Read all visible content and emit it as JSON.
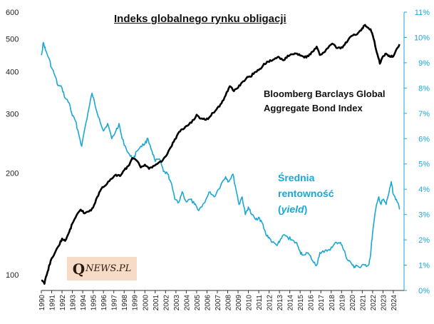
{
  "chart_data": {
    "type": "line",
    "title": "Indeks globalnego  rynku obligacji",
    "x": [
      1990,
      1991,
      1992,
      1993,
      1994,
      1995,
      1996,
      1997,
      1998,
      1999,
      2000,
      2001,
      2002,
      2003,
      2004,
      2005,
      2006,
      2007,
      2008,
      2009,
      2010,
      2011,
      2012,
      2013,
      2014,
      2015,
      2016,
      2017,
      2018,
      2019,
      2020,
      2021,
      2022,
      2023,
      2024
    ],
    "x_tick_labels": [
      "1990",
      "1991",
      "1992",
      "1993",
      "1994",
      "1995",
      "1996",
      "1997",
      "1998",
      "1999",
      "2000",
      "2001",
      "2002",
      "2003",
      "2004",
      "2005",
      "2006",
      "2007",
      "2008",
      "2009",
      "2010",
      "2011",
      "2012",
      "2013",
      "2014",
      "2015",
      "2016",
      "2017",
      "2018",
      "2019",
      "2020",
      "2021",
      "2022",
      "2023",
      "2024"
    ],
    "left_axis": {
      "scale": "log",
      "ylim": [
        90,
        600
      ],
      "ticks": [
        100,
        200,
        300,
        400,
        500,
        600
      ],
      "tick_labels": [
        "100",
        "200",
        "300",
        "400",
        "500",
        "600"
      ]
    },
    "right_axis": {
      "ylim": [
        0,
        11
      ],
      "ticks": [
        0,
        1,
        2,
        3,
        4,
        5,
        6,
        7,
        8,
        9,
        10,
        11
      ],
      "tick_labels": [
        "0%",
        "1%",
        "2%",
        "3%",
        "4%",
        "5%",
        "6%",
        "7%",
        "8%",
        "9%",
        "10%",
        "11%"
      ]
    },
    "series": [
      {
        "name": "Bloomberg Barclays Global Aggregate Bond Index",
        "axis": "left",
        "color": "#000000",
        "points": [
          [
            1990.0,
            96
          ],
          [
            1990.3,
            94
          ],
          [
            1990.6,
            102
          ],
          [
            1990.9,
            110
          ],
          [
            1991.3,
            116
          ],
          [
            1991.7,
            122
          ],
          [
            1992.0,
            128
          ],
          [
            1992.3,
            126
          ],
          [
            1992.7,
            134
          ],
          [
            1993.0,
            142
          ],
          [
            1993.4,
            150
          ],
          [
            1993.8,
            156
          ],
          [
            1994.2,
            152
          ],
          [
            1994.6,
            154
          ],
          [
            1995.0,
            158
          ],
          [
            1995.4,
            170
          ],
          [
            1995.8,
            180
          ],
          [
            1996.2,
            184
          ],
          [
            1996.7,
            192
          ],
          [
            1997.2,
            198
          ],
          [
            1997.6,
            196
          ],
          [
            1998.0,
            204
          ],
          [
            1998.4,
            210
          ],
          [
            1998.8,
            222
          ],
          [
            1999.2,
            218
          ],
          [
            1999.6,
            208
          ],
          [
            2000.0,
            212
          ],
          [
            2000.4,
            206
          ],
          [
            2000.8,
            210
          ],
          [
            2001.2,
            213
          ],
          [
            2001.6,
            216
          ],
          [
            2002.0,
            224
          ],
          [
            2002.4,
            236
          ],
          [
            2002.8,
            248
          ],
          [
            2003.2,
            262
          ],
          [
            2003.6,
            270
          ],
          [
            2004.0,
            276
          ],
          [
            2004.5,
            282
          ],
          [
            2005.0,
            298
          ],
          [
            2005.4,
            290
          ],
          [
            2005.8,
            288
          ],
          [
            2006.2,
            292
          ],
          [
            2006.6,
            302
          ],
          [
            2007.0,
            312
          ],
          [
            2007.4,
            322
          ],
          [
            2007.8,
            340
          ],
          [
            2008.2,
            362
          ],
          [
            2008.6,
            350
          ],
          [
            2009.0,
            358
          ],
          [
            2009.4,
            372
          ],
          [
            2009.8,
            382
          ],
          [
            2010.2,
            386
          ],
          [
            2010.6,
            398
          ],
          [
            2011.0,
            404
          ],
          [
            2011.4,
            416
          ],
          [
            2011.8,
            428
          ],
          [
            2012.2,
            430
          ],
          [
            2012.6,
            438
          ],
          [
            2013.0,
            440
          ],
          [
            2013.4,
            432
          ],
          [
            2013.8,
            446
          ],
          [
            2014.2,
            450
          ],
          [
            2014.6,
            452
          ],
          [
            2015.0,
            446
          ],
          [
            2015.4,
            440
          ],
          [
            2015.8,
            444
          ],
          [
            2016.2,
            458
          ],
          [
            2016.6,
            474
          ],
          [
            2016.9,
            448
          ],
          [
            2017.3,
            456
          ],
          [
            2017.7,
            470
          ],
          [
            2018.1,
            484
          ],
          [
            2018.5,
            470
          ],
          [
            2018.9,
            468
          ],
          [
            2019.3,
            480
          ],
          [
            2019.7,
            500
          ],
          [
            2020.1,
            512
          ],
          [
            2020.5,
            516
          ],
          [
            2020.9,
            530
          ],
          [
            2021.2,
            548
          ],
          [
            2021.5,
            540
          ],
          [
            2021.8,
            534
          ],
          [
            2022.1,
            500
          ],
          [
            2022.4,
            456
          ],
          [
            2022.7,
            422
          ],
          [
            2023.0,
            444
          ],
          [
            2023.3,
            452
          ],
          [
            2023.6,
            446
          ],
          [
            2023.9,
            442
          ],
          [
            2024.2,
            458
          ],
          [
            2024.6,
            482
          ]
        ]
      },
      {
        "name": "Średnia rentowność (yield)",
        "axis": "right",
        "color": "#1aa7d6",
        "points": [
          [
            1990.0,
            9.3
          ],
          [
            1990.2,
            9.8
          ],
          [
            1990.4,
            9.5
          ],
          [
            1990.7,
            9.2
          ],
          [
            1991.0,
            8.8
          ],
          [
            1991.3,
            8.5
          ],
          [
            1991.6,
            8.1
          ],
          [
            1992.0,
            8.0
          ],
          [
            1992.3,
            7.6
          ],
          [
            1992.7,
            7.4
          ],
          [
            1993.0,
            6.9
          ],
          [
            1993.3,
            6.7
          ],
          [
            1993.6,
            6.2
          ],
          [
            1993.9,
            5.7
          ],
          [
            1994.2,
            6.4
          ],
          [
            1994.6,
            7.2
          ],
          [
            1994.9,
            7.8
          ],
          [
            1995.2,
            7.3
          ],
          [
            1995.6,
            6.8
          ],
          [
            1996.0,
            6.3
          ],
          [
            1996.4,
            6.6
          ],
          [
            1996.8,
            6.0
          ],
          [
            1997.2,
            6.3
          ],
          [
            1997.5,
            6.6
          ],
          [
            1997.8,
            6.0
          ],
          [
            1998.2,
            5.6
          ],
          [
            1998.6,
            5.3
          ],
          [
            1998.9,
            5.2
          ],
          [
            1999.2,
            5.5
          ],
          [
            1999.6,
            5.7
          ],
          [
            2000.0,
            5.8
          ],
          [
            2000.3,
            6.0
          ],
          [
            2000.7,
            5.5
          ],
          [
            2001.0,
            5.1
          ],
          [
            2001.4,
            5.2
          ],
          [
            2001.8,
            4.7
          ],
          [
            2002.2,
            4.6
          ],
          [
            2002.5,
            4.3
          ],
          [
            2002.9,
            3.6
          ],
          [
            2003.3,
            3.5
          ],
          [
            2003.6,
            3.9
          ],
          [
            2004.0,
            3.5
          ],
          [
            2004.4,
            3.6
          ],
          [
            2004.8,
            3.4
          ],
          [
            2005.1,
            3.2
          ],
          [
            2005.5,
            3.3
          ],
          [
            2005.9,
            3.6
          ],
          [
            2006.3,
            3.9
          ],
          [
            2006.7,
            3.7
          ],
          [
            2007.1,
            4.0
          ],
          [
            2007.5,
            4.3
          ],
          [
            2007.8,
            4.5
          ],
          [
            2008.1,
            4.3
          ],
          [
            2008.5,
            4.6
          ],
          [
            2008.8,
            4.0
          ],
          [
            2009.1,
            3.4
          ],
          [
            2009.4,
            3.7
          ],
          [
            2009.7,
            3.0
          ],
          [
            2010.0,
            3.3
          ],
          [
            2010.3,
            3.0
          ],
          [
            2010.7,
            2.8
          ],
          [
            2011.0,
            2.9
          ],
          [
            2011.3,
            2.7
          ],
          [
            2011.7,
            2.2
          ],
          [
            2012.0,
            2.1
          ],
          [
            2012.3,
            1.9
          ],
          [
            2012.7,
            1.8
          ],
          [
            2013.0,
            1.9
          ],
          [
            2013.4,
            2.2
          ],
          [
            2013.8,
            2.1
          ],
          [
            2014.2,
            2.0
          ],
          [
            2014.6,
            1.9
          ],
          [
            2014.9,
            1.6
          ],
          [
            2015.2,
            1.4
          ],
          [
            2015.6,
            1.5
          ],
          [
            2015.9,
            1.4
          ],
          [
            2016.3,
            1.1
          ],
          [
            2016.6,
            1.0
          ],
          [
            2016.9,
            1.5
          ],
          [
            2017.3,
            1.5
          ],
          [
            2017.7,
            1.6
          ],
          [
            2018.1,
            1.7
          ],
          [
            2018.5,
            1.9
          ],
          [
            2018.9,
            1.9
          ],
          [
            2019.2,
            1.6
          ],
          [
            2019.6,
            1.2
          ],
          [
            2019.9,
            1.1
          ],
          [
            2020.2,
            0.9
          ],
          [
            2020.4,
            1.0
          ],
          [
            2020.8,
            0.9
          ],
          [
            2021.2,
            1.0
          ],
          [
            2021.6,
            1.0
          ],
          [
            2021.8,
            1.4
          ],
          [
            2022.0,
            2.3
          ],
          [
            2022.3,
            3.2
          ],
          [
            2022.6,
            3.7
          ],
          [
            2022.8,
            3.4
          ],
          [
            2023.0,
            3.6
          ],
          [
            2023.3,
            3.4
          ],
          [
            2023.6,
            3.9
          ],
          [
            2023.8,
            4.3
          ],
          [
            2024.0,
            3.8
          ],
          [
            2024.3,
            3.6
          ],
          [
            2024.6,
            3.2
          ]
        ]
      }
    ],
    "annotations": {
      "black_label_line1": "Bloomberg Barclays Global",
      "black_label_line2": "Aggregate Bond Index",
      "blue_label_line1": "Średnia",
      "blue_label_line2": "rentowność",
      "blue_label_line3_open": "(",
      "blue_label_line3_italic": "yield",
      "blue_label_line3_close": ")"
    }
  },
  "logo": {
    "initial": "Q",
    "rest": "NEWS.PL"
  }
}
